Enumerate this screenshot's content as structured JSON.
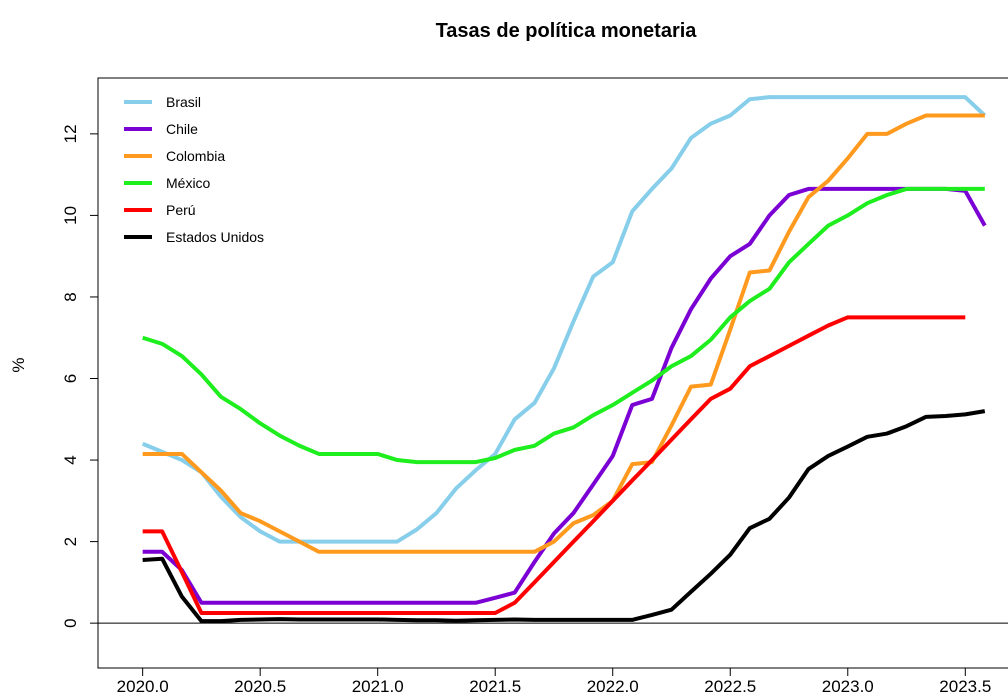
{
  "chart_data": {
    "type": "line",
    "title": "Tasas de política monetaria",
    "y_label": "%",
    "x": [
      2020,
      2020.083,
      2020.167,
      2020.25,
      2020.333,
      2020.417,
      2020.5,
      2020.583,
      2020.667,
      2020.75,
      2020.833,
      2020.917,
      2021,
      2021.083,
      2021.167,
      2021.25,
      2021.333,
      2021.417,
      2021.5,
      2021.583,
      2021.667,
      2021.75,
      2021.833,
      2021.917,
      2022,
      2022.083,
      2022.167,
      2022.25,
      2022.333,
      2022.417,
      2022.5,
      2022.583,
      2022.667,
      2022.75,
      2022.833,
      2022.917,
      2023,
      2023.083,
      2023.167,
      2023.25,
      2023.333,
      2023.417,
      2023.5,
      2023.583
    ],
    "series": [
      {
        "name": "Brasil",
        "color": "#87ceeb",
        "values": [
          4.4,
          4.2,
          4.0,
          3.7,
          3.1,
          2.6,
          2.25,
          2.0,
          2.0,
          2.0,
          2.0,
          2.0,
          2.0,
          2.0,
          2.3,
          2.7,
          3.3,
          3.75,
          4.15,
          5.0,
          5.4,
          6.25,
          7.4,
          8.5,
          8.85,
          10.1,
          10.65,
          11.15,
          11.9,
          12.25,
          12.45,
          12.85,
          12.9,
          12.9,
          12.9,
          12.9,
          12.9,
          12.9,
          12.9,
          12.9,
          12.9,
          12.9,
          12.9,
          12.45
        ]
      },
      {
        "name": "Chile",
        "color": "#7b00d4",
        "values": [
          1.75,
          1.75,
          1.3,
          0.5,
          0.5,
          0.5,
          0.5,
          0.5,
          0.5,
          0.5,
          0.5,
          0.5,
          0.5,
          0.5,
          0.5,
          0.5,
          0.5,
          0.5,
          0.62,
          0.75,
          1.5,
          2.2,
          2.7,
          3.4,
          4.1,
          5.35,
          5.5,
          6.75,
          7.7,
          8.45,
          9.0,
          9.3,
          10.0,
          10.5,
          10.65,
          10.65,
          10.65,
          10.65,
          10.65,
          10.65,
          10.65,
          10.65,
          10.6,
          9.75
        ]
      },
      {
        "name": "Colombia",
        "color": "#ff9a1f",
        "values": [
          4.15,
          4.15,
          4.15,
          3.7,
          3.25,
          2.7,
          2.5,
          2.25,
          2.0,
          1.75,
          1.75,
          1.75,
          1.75,
          1.75,
          1.75,
          1.75,
          1.75,
          1.75,
          1.75,
          1.75,
          1.75,
          2.0,
          2.45,
          2.65,
          3.0,
          3.9,
          3.95,
          4.85,
          5.8,
          5.85,
          7.2,
          8.6,
          8.65,
          9.6,
          10.45,
          10.85,
          11.4,
          12.0,
          12.0,
          12.25,
          12.45,
          12.45,
          12.45,
          12.45
        ]
      },
      {
        "name": "México",
        "color": "#1eee1e",
        "values": [
          7.0,
          6.85,
          6.55,
          6.1,
          5.55,
          5.25,
          4.9,
          4.6,
          4.35,
          4.15,
          4.15,
          4.15,
          4.15,
          4.0,
          3.95,
          3.95,
          3.95,
          3.95,
          4.05,
          4.25,
          4.35,
          4.65,
          4.8,
          5.1,
          5.35,
          5.65,
          5.95,
          6.3,
          6.55,
          6.95,
          7.5,
          7.9,
          8.2,
          8.85,
          9.3,
          9.75,
          10.0,
          10.3,
          10.5,
          10.65,
          10.65,
          10.65,
          10.65,
          10.65
        ]
      },
      {
        "name": "Perú",
        "color": "#ff0000",
        "values": [
          2.25,
          2.25,
          1.25,
          0.25,
          0.25,
          0.25,
          0.25,
          0.25,
          0.25,
          0.25,
          0.25,
          0.25,
          0.25,
          0.25,
          0.25,
          0.25,
          0.25,
          0.25,
          0.25,
          0.5,
          1.0,
          1.5,
          2.0,
          2.5,
          3.0,
          3.5,
          4.0,
          4.5,
          5.0,
          5.5,
          5.75,
          6.3,
          6.55,
          6.8,
          7.05,
          7.3,
          7.5,
          7.5,
          7.5,
          7.5,
          7.5,
          7.5,
          7.5,
          null
        ]
      },
      {
        "name": "Estados Unidos",
        "color": "#000000",
        "values": [
          1.55,
          1.58,
          0.65,
          0.05,
          0.05,
          0.08,
          0.09,
          0.1,
          0.09,
          0.09,
          0.09,
          0.09,
          0.09,
          0.08,
          0.07,
          0.07,
          0.06,
          0.07,
          0.08,
          0.09,
          0.08,
          0.08,
          0.08,
          0.08,
          0.08,
          0.08,
          0.2,
          0.33,
          0.77,
          1.21,
          1.68,
          2.33,
          2.56,
          3.08,
          3.78,
          4.1,
          4.33,
          4.57,
          4.65,
          4.83,
          5.06,
          5.08,
          5.12,
          5.2
        ]
      }
    ],
    "xlim": [
      2019.81,
      2023.72
    ],
    "ylim": [
      -1.1,
      13.37
    ],
    "xticks": [
      {
        "value": 2020,
        "label": "2020.0"
      },
      2020.5,
      {
        "value": 2021,
        "label": "2021.0"
      },
      2021.5,
      {
        "value": 2022,
        "label": "2022.0"
      },
      2022.5,
      {
        "value": 2023,
        "label": "2023.0"
      },
      2023.5
    ],
    "yticks": [
      0,
      2,
      4,
      6,
      8,
      10,
      12
    ],
    "legend": "top-left"
  }
}
